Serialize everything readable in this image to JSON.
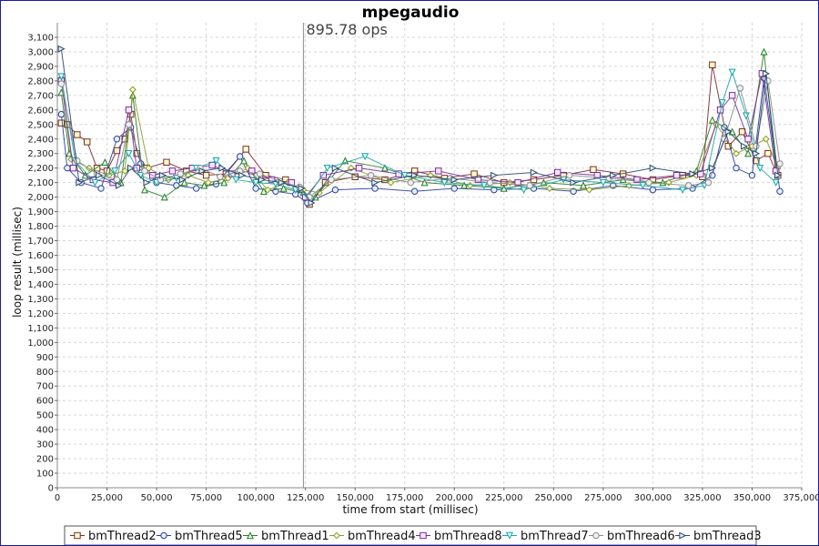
{
  "chart_data": {
    "type": "line",
    "title": "mpegaudio",
    "xlabel": "time from start (millisec)",
    "ylabel": "loop result (millisec)",
    "xlim": [
      0,
      375000
    ],
    "ylim": [
      0,
      3200
    ],
    "x_ticks": [
      0,
      25000,
      50000,
      75000,
      100000,
      125000,
      150000,
      175000,
      200000,
      225000,
      250000,
      275000,
      300000,
      325000,
      350000,
      375000
    ],
    "x_tick_labels": [
      "0",
      "25,000",
      "50,000",
      "75,000",
      "100,000",
      "125,000",
      "150,000",
      "175,000",
      "200,000",
      "225,000",
      "250,000",
      "275,000",
      "300,000",
      "325,000",
      "350,000",
      "375,000"
    ],
    "y_ticks": [
      0,
      100,
      200,
      300,
      400,
      500,
      600,
      700,
      800,
      900,
      1000,
      1100,
      1200,
      1300,
      1400,
      1500,
      1600,
      1700,
      1800,
      1900,
      2000,
      2100,
      2200,
      2300,
      2400,
      2500,
      2600,
      2700,
      2800,
      2900,
      3000,
      3100
    ],
    "y_tick_labels": [
      "0",
      "100",
      "200",
      "300",
      "400",
      "500",
      "600",
      "700",
      "800",
      "900",
      "1,000",
      "1,100",
      "1,200",
      "1,300",
      "1,400",
      "1,500",
      "1,600",
      "1,700",
      "1,800",
      "1,900",
      "2,000",
      "2,100",
      "2,200",
      "2,300",
      "2,400",
      "2,500",
      "2,600",
      "2,700",
      "2,800",
      "2,900",
      "3,000",
      "3,100"
    ],
    "grid": true,
    "legend_position": "bottom",
    "marker": {
      "x": 124000,
      "label": "895.78 ops"
    },
    "series": [
      {
        "name": "bmThread2",
        "marker": "square",
        "color": "#7a2a2a",
        "x": [
          2000,
          5000,
          10000,
          15000,
          20000,
          25000,
          30000,
          34000,
          37000,
          40000,
          45000,
          55000,
          65000,
          75000,
          85000,
          95000,
          105000,
          115000,
          122000,
          127000,
          135000,
          150000,
          165000,
          180000,
          195000,
          210000,
          225000,
          240000,
          255000,
          270000,
          285000,
          300000,
          315000,
          325000,
          330000,
          338000,
          345000,
          352000,
          358000,
          363000
        ],
        "y": [
          2510,
          2500,
          2430,
          2380,
          2200,
          2180,
          2320,
          2400,
          2570,
          2300,
          2200,
          2240,
          2180,
          2150,
          2160,
          2330,
          2150,
          2120,
          2050,
          1950,
          2100,
          2140,
          2120,
          2180,
          2130,
          2160,
          2100,
          2120,
          2150,
          2190,
          2160,
          2120,
          2150,
          2140,
          2910,
          2350,
          2450,
          2250,
          2300,
          2150
        ]
      },
      {
        "name": "bmThread5",
        "marker": "circle",
        "color": "#2a3f9e",
        "x": [
          2000,
          5000,
          12000,
          22000,
          30000,
          37000,
          42000,
          50000,
          60000,
          70000,
          80000,
          92000,
          100000,
          110000,
          120000,
          126000,
          140000,
          160000,
          180000,
          200000,
          220000,
          240000,
          260000,
          280000,
          300000,
          320000,
          330000,
          336000,
          342000,
          350000,
          356000,
          364000
        ],
        "y": [
          2570,
          2200,
          2100,
          2060,
          2400,
          2480,
          2230,
          2100,
          2080,
          2060,
          2090,
          2280,
          2060,
          2040,
          2020,
          1960,
          2050,
          2060,
          2040,
          2060,
          2050,
          2060,
          2040,
          2080,
          2050,
          2060,
          2150,
          2480,
          2200,
          2150,
          2820,
          2040
        ]
      },
      {
        "name": "bmThread1",
        "marker": "triangle-up",
        "color": "#2a7a2a",
        "x": [
          2000,
          6000,
          14000,
          24000,
          32000,
          38000,
          44000,
          54000,
          64000,
          74000,
          84000,
          94000,
          104000,
          114000,
          124000,
          130000,
          145000,
          165000,
          185000,
          205000,
          225000,
          245000,
          265000,
          285000,
          305000,
          322000,
          330000,
          340000,
          348000,
          356000,
          362000
        ],
        "y": [
          2720,
          2300,
          2150,
          2240,
          2100,
          2700,
          2050,
          2000,
          2100,
          2080,
          2100,
          2250,
          2040,
          2060,
          2030,
          2000,
          2250,
          2200,
          2100,
          2080,
          2060,
          2100,
          2080,
          2120,
          2100,
          2180,
          2530,
          2450,
          2300,
          3000,
          2200
        ]
      },
      {
        "name": "bmThread4",
        "marker": "diamond",
        "color": "#8a9a2a",
        "x": [
          2000,
          7000,
          16000,
          26000,
          34000,
          38000,
          46000,
          56000,
          66000,
          76000,
          86000,
          96000,
          106000,
          116000,
          124000,
          132000,
          148000,
          168000,
          188000,
          208000,
          228000,
          248000,
          268000,
          288000,
          308000,
          322000,
          332000,
          342000,
          350000,
          357000,
          363000
        ],
        "y": [
          2820,
          2260,
          2200,
          2150,
          2180,
          2740,
          2200,
          2120,
          2150,
          2100,
          2130,
          2200,
          2050,
          2100,
          2050,
          2030,
          2200,
          2100,
          2150,
          2080,
          2100,
          2060,
          2050,
          2080,
          2100,
          2150,
          2500,
          2300,
          2350,
          2400,
          2200
        ]
      },
      {
        "name": "bmThread8",
        "marker": "square-open",
        "color": "#7a2a9e",
        "x": [
          2000,
          8000,
          18000,
          28000,
          36000,
          40000,
          48000,
          58000,
          68000,
          78000,
          88000,
          98000,
          108000,
          118000,
          125000,
          134000,
          152000,
          172000,
          192000,
          212000,
          232000,
          252000,
          272000,
          292000,
          312000,
          324000,
          334000,
          340000,
          348000,
          355000,
          362000
        ],
        "y": [
          2800,
          2200,
          2120,
          2100,
          2600,
          2200,
          2150,
          2180,
          2200,
          2220,
          2160,
          2180,
          2120,
          2100,
          2000,
          2150,
          2200,
          2160,
          2180,
          2120,
          2100,
          2170,
          2150,
          2120,
          2150,
          2160,
          2600,
          2700,
          2400,
          2850,
          2180
        ]
      },
      {
        "name": "bmThread7",
        "marker": "triangle-down",
        "color": "#1aa6a6",
        "x": [
          2000,
          9000,
          19000,
          29000,
          36000,
          42000,
          50000,
          60000,
          70000,
          80000,
          90000,
          100000,
          110000,
          120000,
          126000,
          136000,
          155000,
          175000,
          195000,
          215000,
          235000,
          255000,
          275000,
          295000,
          315000,
          326000,
          335000,
          340000,
          347000,
          354000,
          362000
        ],
        "y": [
          2830,
          2250,
          2100,
          2180,
          2300,
          2150,
          2100,
          2130,
          2200,
          2250,
          2120,
          2100,
          2090,
          2050,
          2000,
          2200,
          2280,
          2150,
          2100,
          2080,
          2050,
          2120,
          2100,
          2080,
          2050,
          2080,
          2650,
          2860,
          2560,
          2200,
          2100
        ]
      },
      {
        "name": "bmThread6",
        "marker": "circle-open",
        "color": "#8a8a8a",
        "x": [
          2000,
          10000,
          20000,
          30000,
          36000,
          44000,
          52000,
          62000,
          72000,
          82000,
          92000,
          102000,
          112000,
          122000,
          127000,
          138000,
          158000,
          178000,
          198000,
          218000,
          238000,
          258000,
          278000,
          298000,
          318000,
          328000,
          336000,
          344000,
          352000,
          358000,
          364000
        ],
        "y": [
          2780,
          2250,
          2160,
          2120,
          2500,
          2180,
          2120,
          2160,
          2200,
          2140,
          2180,
          2160,
          2110,
          2070,
          2000,
          2120,
          2150,
          2100,
          2130,
          2100,
          2080,
          2150,
          2130,
          2100,
          2080,
          2100,
          2400,
          2750,
          2350,
          2800,
          2230
        ]
      },
      {
        "name": "bmThread3",
        "marker": "triangle-right",
        "color": "#2a4a6a",
        "x": [
          2000,
          11000,
          21000,
          31000,
          37000,
          45000,
          53000,
          63000,
          73000,
          83000,
          93000,
          103000,
          113000,
          123000,
          128000,
          140000,
          160000,
          180000,
          200000,
          220000,
          240000,
          260000,
          280000,
          300000,
          320000,
          330000,
          338000,
          346000,
          352000,
          357000,
          363000
        ],
        "y": [
          3020,
          2100,
          2150,
          2080,
          2200,
          2100,
          2150,
          2120,
          2180,
          2200,
          2150,
          2120,
          2100,
          2060,
          1960,
          2200,
          2100,
          2150,
          2120,
          2150,
          2170,
          2100,
          2150,
          2200,
          2160,
          2200,
          2450,
          2350,
          2300,
          2850,
          2150
        ]
      }
    ]
  }
}
